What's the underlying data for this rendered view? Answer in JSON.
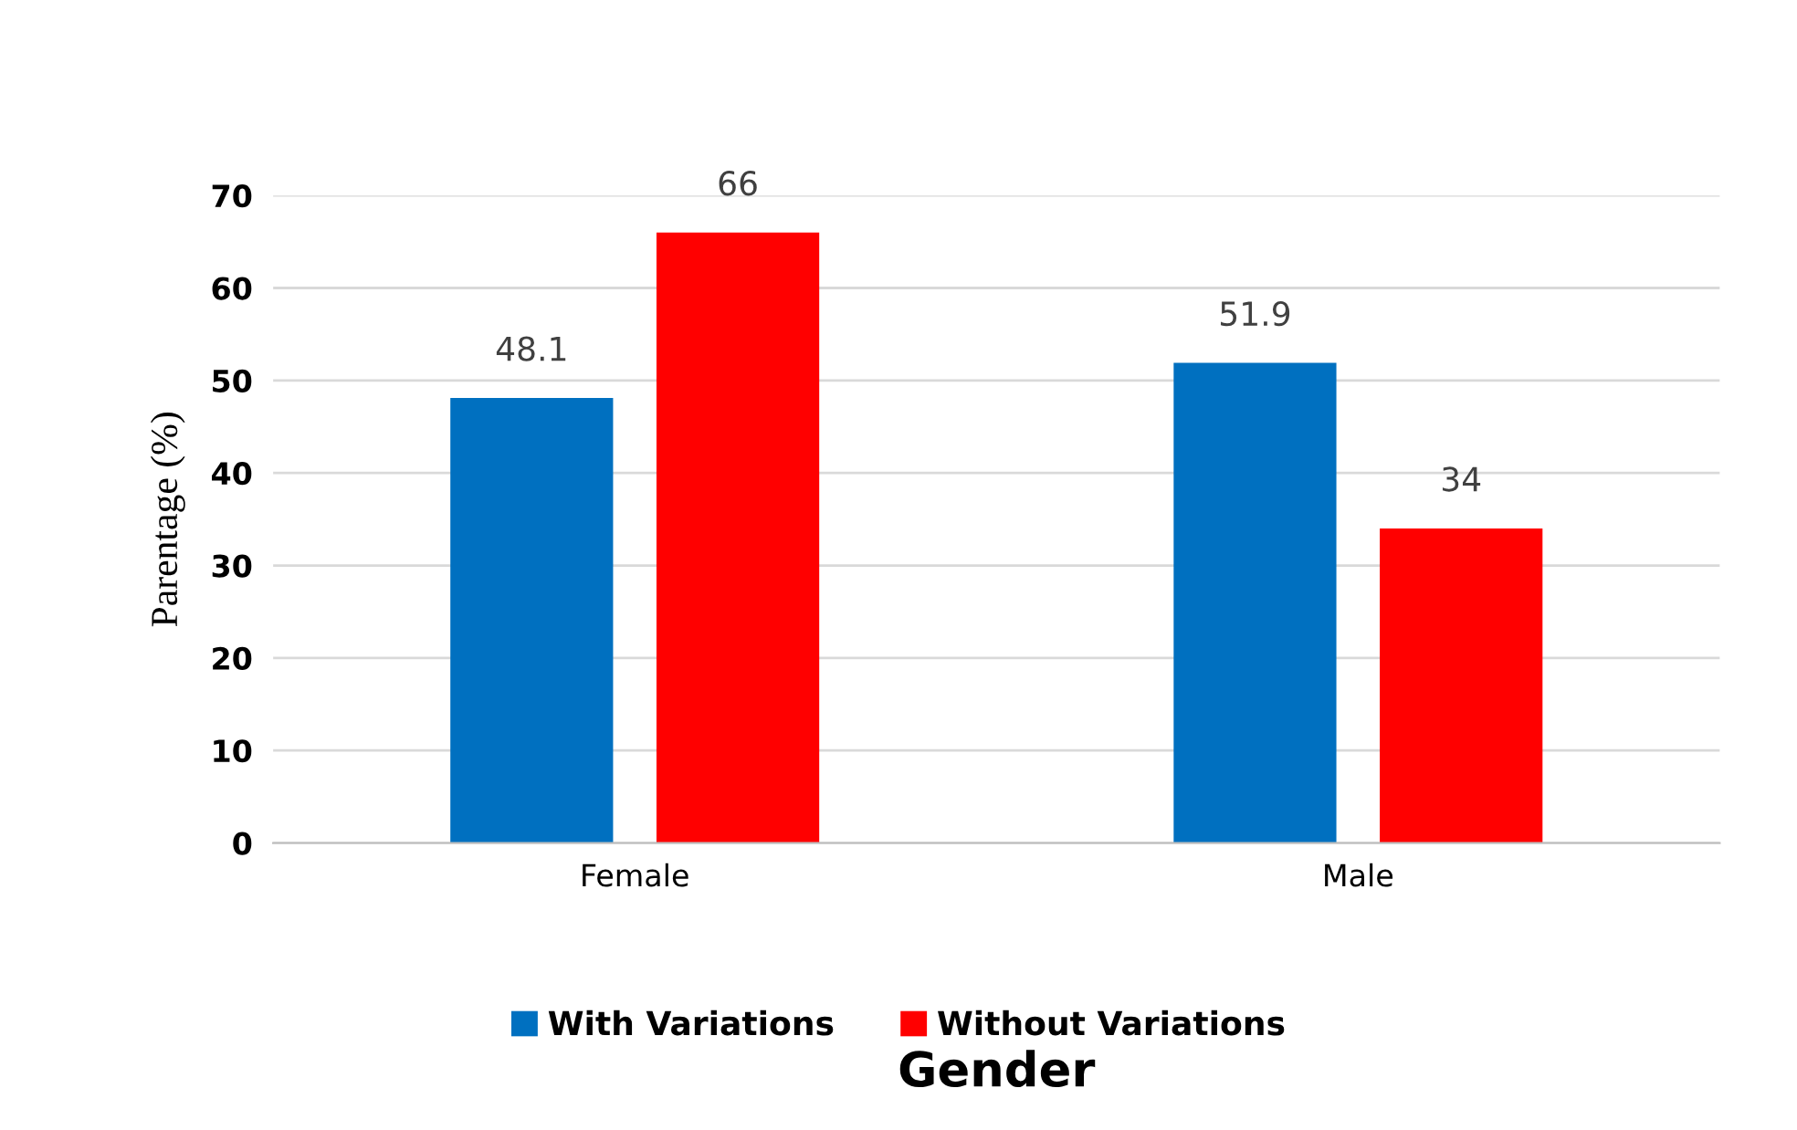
{
  "chart_data": {
    "type": "bar",
    "xlabel": "Gender",
    "ylabel": "Parentage (%)",
    "categories": [
      "Female",
      "Male"
    ],
    "series": [
      {
        "name": "With Variations",
        "color": "#0070c0",
        "values": [
          48.1,
          51.9
        ]
      },
      {
        "name": "Without Variations",
        "color": "#ff0000",
        "values": [
          66,
          34
        ]
      }
    ],
    "ylim": [
      0,
      70
    ],
    "yticks": [
      0,
      10,
      20,
      30,
      40,
      50,
      60,
      70
    ],
    "grid": "y",
    "legend": "bottom",
    "data_labels": true
  }
}
